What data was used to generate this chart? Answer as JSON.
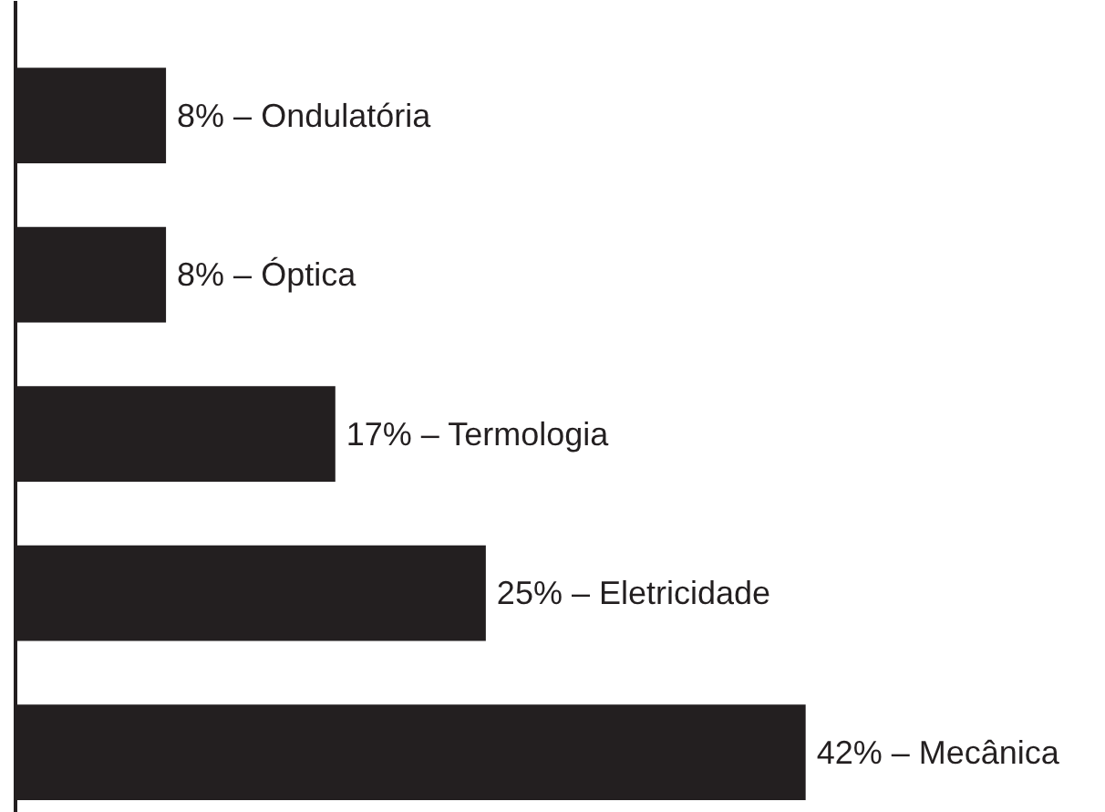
{
  "chart_data": {
    "type": "bar",
    "orientation": "horizontal",
    "categories": [
      null,
      null,
      null,
      null,
      null
    ],
    "values": [
      8,
      8,
      17,
      25,
      42
    ],
    "color": "#231f20",
    "value_labels": [
      "8% – Ondulatória",
      "8% – Óptica",
      "17% – Termologia",
      "25% – Eletricidade",
      "42% – Mecânica"
    ]
  }
}
